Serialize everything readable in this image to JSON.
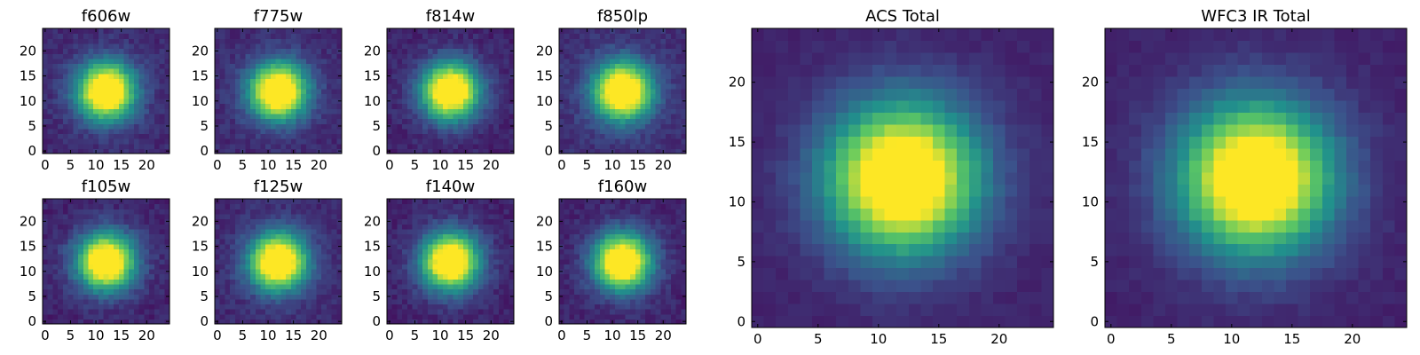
{
  "figure": {
    "colormap": "viridis",
    "colormap_stops": [
      "#440154",
      "#3b528b",
      "#21918c",
      "#5ec962",
      "#fde725"
    ]
  },
  "chart_data": [
    {
      "type": "heatmap",
      "title": "f606w",
      "grid_size": [
        25,
        25
      ],
      "xlim": [
        -0.5,
        24.5
      ],
      "ylim": [
        -0.5,
        24.5
      ],
      "xticks": [
        0,
        5,
        10,
        15,
        20
      ],
      "yticks": [
        0,
        5,
        10,
        15,
        20
      ],
      "xtick_labels": [
        "0",
        "5",
        "10",
        "15",
        "20"
      ],
      "ytick_labels": [
        "0",
        "5",
        "10",
        "15",
        "20"
      ],
      "grid": false,
      "colormap": "viridis",
      "peak_center": [
        12,
        12
      ],
      "background_level": 0.12
    },
    {
      "type": "heatmap",
      "title": "f775w",
      "grid_size": [
        25,
        25
      ],
      "xlim": [
        -0.5,
        24.5
      ],
      "ylim": [
        -0.5,
        24.5
      ],
      "xticks": [
        0,
        5,
        10,
        15,
        20
      ],
      "yticks": [
        0,
        5,
        10,
        15,
        20
      ],
      "xtick_labels": [
        "0",
        "5",
        "10",
        "15",
        "20"
      ],
      "ytick_labels": [
        "0",
        "5",
        "10",
        "15",
        "20"
      ],
      "grid": false,
      "colormap": "viridis",
      "peak_center": [
        12,
        12
      ],
      "background_level": 0.12
    },
    {
      "type": "heatmap",
      "title": "f814w",
      "grid_size": [
        25,
        25
      ],
      "xlim": [
        -0.5,
        24.5
      ],
      "ylim": [
        -0.5,
        24.5
      ],
      "xticks": [
        0,
        5,
        10,
        15,
        20
      ],
      "yticks": [
        0,
        5,
        10,
        15,
        20
      ],
      "xtick_labels": [
        "0",
        "5",
        "10",
        "15",
        "20"
      ],
      "ytick_labels": [
        "0",
        "5",
        "10",
        "15",
        "20"
      ],
      "grid": false,
      "colormap": "viridis",
      "peak_center": [
        12,
        12
      ],
      "background_level": 0.1
    },
    {
      "type": "heatmap",
      "title": "f850lp",
      "grid_size": [
        25,
        25
      ],
      "xlim": [
        -0.5,
        24.5
      ],
      "ylim": [
        -0.5,
        24.5
      ],
      "xticks": [
        0,
        5,
        10,
        15,
        20
      ],
      "yticks": [
        0,
        5,
        10,
        15,
        20
      ],
      "xtick_labels": [
        "0",
        "5",
        "10",
        "15",
        "20"
      ],
      "ytick_labels": [
        "0",
        "5",
        "10",
        "15",
        "20"
      ],
      "grid": false,
      "colormap": "viridis",
      "peak_center": [
        12,
        12
      ],
      "background_level": 0.14
    },
    {
      "type": "heatmap",
      "title": "f105w",
      "grid_size": [
        25,
        25
      ],
      "xlim": [
        -0.5,
        24.5
      ],
      "ylim": [
        -0.5,
        24.5
      ],
      "xticks": [
        0,
        5,
        10,
        15,
        20
      ],
      "yticks": [
        0,
        5,
        10,
        15,
        20
      ],
      "xtick_labels": [
        "0",
        "5",
        "10",
        "15",
        "20"
      ],
      "ytick_labels": [
        "0",
        "5",
        "10",
        "15",
        "20"
      ],
      "grid": false,
      "colormap": "viridis",
      "peak_center": [
        12,
        12
      ],
      "background_level": 0.1
    },
    {
      "type": "heatmap",
      "title": "f125w",
      "grid_size": [
        25,
        25
      ],
      "xlim": [
        -0.5,
        24.5
      ],
      "ylim": [
        -0.5,
        24.5
      ],
      "xticks": [
        0,
        5,
        10,
        15,
        20
      ],
      "yticks": [
        0,
        5,
        10,
        15,
        20
      ],
      "xtick_labels": [
        "0",
        "5",
        "10",
        "15",
        "20"
      ],
      "ytick_labels": [
        "0",
        "5",
        "10",
        "15",
        "20"
      ],
      "grid": false,
      "colormap": "viridis",
      "peak_center": [
        12,
        12
      ],
      "background_level": 0.12
    },
    {
      "type": "heatmap",
      "title": "f140w",
      "grid_size": [
        25,
        25
      ],
      "xlim": [
        -0.5,
        24.5
      ],
      "ylim": [
        -0.5,
        24.5
      ],
      "xticks": [
        0,
        5,
        10,
        15,
        20
      ],
      "yticks": [
        0,
        5,
        10,
        15,
        20
      ],
      "xtick_labels": [
        "0",
        "5",
        "10",
        "15",
        "20"
      ],
      "ytick_labels": [
        "0",
        "5",
        "10",
        "15",
        "20"
      ],
      "grid": false,
      "colormap": "viridis",
      "peak_center": [
        12,
        12
      ],
      "background_level": 0.1
    },
    {
      "type": "heatmap",
      "title": "f160w",
      "grid_size": [
        25,
        25
      ],
      "xlim": [
        -0.5,
        24.5
      ],
      "ylim": [
        -0.5,
        24.5
      ],
      "xticks": [
        0,
        5,
        10,
        15,
        20
      ],
      "yticks": [
        0,
        5,
        10,
        15,
        20
      ],
      "xtick_labels": [
        "0",
        "5",
        "10",
        "15",
        "20"
      ],
      "ytick_labels": [
        "0",
        "5",
        "10",
        "15",
        "20"
      ],
      "grid": false,
      "colormap": "viridis",
      "peak_center": [
        12,
        12
      ],
      "background_level": 0.1
    },
    {
      "type": "heatmap",
      "title": "ACS Total",
      "grid_size": [
        25,
        25
      ],
      "xlim": [
        -0.5,
        24.5
      ],
      "ylim": [
        -0.5,
        24.5
      ],
      "xticks": [
        0,
        5,
        10,
        15,
        20
      ],
      "yticks": [
        0,
        5,
        10,
        15,
        20
      ],
      "xtick_labels": [
        "0",
        "5",
        "10",
        "15",
        "20"
      ],
      "ytick_labels": [
        "0",
        "5",
        "10",
        "15",
        "20"
      ],
      "grid": false,
      "colormap": "viridis",
      "peak_center": [
        12,
        12
      ],
      "background_level": 0.1
    },
    {
      "type": "heatmap",
      "title": "WFC3 IR Total",
      "grid_size": [
        25,
        25
      ],
      "xlim": [
        -0.5,
        24.5
      ],
      "ylim": [
        -0.5,
        24.5
      ],
      "xticks": [
        0,
        5,
        10,
        15,
        20
      ],
      "yticks": [
        0,
        5,
        10,
        15,
        20
      ],
      "xtick_labels": [
        "0",
        "5",
        "10",
        "15",
        "20"
      ],
      "ytick_labels": [
        "0",
        "5",
        "10",
        "15",
        "20"
      ],
      "grid": false,
      "colormap": "viridis",
      "peak_center": [
        12,
        12
      ],
      "background_level": 0.1
    }
  ]
}
